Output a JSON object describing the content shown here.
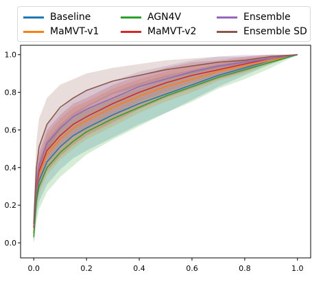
{
  "chart_data": {
    "type": "line",
    "title": "",
    "xlabel": "",
    "ylabel": "",
    "xlim": [
      -0.05,
      1.05
    ],
    "ylim": [
      -0.08,
      1.05
    ],
    "xticks": [
      0.0,
      0.2,
      0.4,
      0.6,
      0.8,
      1.0
    ],
    "xtick_labels": [
      "0.0",
      "0.2",
      "0.4",
      "0.6",
      "0.8",
      "1.0"
    ],
    "yticks": [
      0.0,
      0.2,
      0.4,
      0.6,
      0.8,
      1.0
    ],
    "ytick_labels": [
      "0.0",
      "0.2",
      "0.4",
      "0.6",
      "0.8",
      "1.0"
    ],
    "grid": false,
    "legend_placement": "top-center",
    "x": [
      0.0,
      0.01,
      0.02,
      0.05,
      0.1,
      0.15,
      0.2,
      0.3,
      0.4,
      0.5,
      0.6,
      0.7,
      0.8,
      0.9,
      1.0
    ],
    "series": [
      {
        "name": "Baseline",
        "color": "#1f77b4",
        "values": [
          0.05,
          0.25,
          0.33,
          0.43,
          0.51,
          0.57,
          0.61,
          0.68,
          0.74,
          0.79,
          0.84,
          0.89,
          0.93,
          0.97,
          1.0
        ],
        "band": [
          0.1,
          0.1,
          0.11,
          0.12,
          0.12,
          0.12,
          0.12,
          0.12,
          0.11,
          0.1,
          0.08,
          0.06,
          0.04,
          0.02,
          0.0
        ]
      },
      {
        "name": "MaMVT-v1",
        "color": "#ff7f0e",
        "values": [
          0.06,
          0.27,
          0.36,
          0.47,
          0.55,
          0.61,
          0.65,
          0.72,
          0.78,
          0.83,
          0.87,
          0.91,
          0.94,
          0.97,
          1.0
        ],
        "band": [
          0.08,
          0.09,
          0.1,
          0.11,
          0.11,
          0.11,
          0.1,
          0.1,
          0.09,
          0.08,
          0.07,
          0.05,
          0.04,
          0.02,
          0.0
        ]
      },
      {
        "name": "AGN4V",
        "color": "#2ca02c",
        "values": [
          0.03,
          0.22,
          0.3,
          0.4,
          0.48,
          0.54,
          0.59,
          0.66,
          0.72,
          0.78,
          0.83,
          0.88,
          0.92,
          0.96,
          1.0
        ],
        "band": [
          0.1,
          0.11,
          0.12,
          0.13,
          0.13,
          0.13,
          0.12,
          0.11,
          0.1,
          0.09,
          0.08,
          0.06,
          0.05,
          0.03,
          0.0
        ]
      },
      {
        "name": "MaMVT-v2",
        "color": "#d62728",
        "values": [
          0.08,
          0.29,
          0.38,
          0.49,
          0.57,
          0.63,
          0.67,
          0.74,
          0.8,
          0.85,
          0.89,
          0.92,
          0.95,
          0.98,
          1.0
        ],
        "band": [
          0.08,
          0.09,
          0.1,
          0.11,
          0.11,
          0.11,
          0.1,
          0.1,
          0.09,
          0.08,
          0.07,
          0.05,
          0.04,
          0.02,
          0.0
        ]
      },
      {
        "name": "Ensemble",
        "color": "#9467bd",
        "values": [
          0.09,
          0.31,
          0.41,
          0.53,
          0.61,
          0.67,
          0.71,
          0.77,
          0.83,
          0.87,
          0.91,
          0.94,
          0.96,
          0.98,
          1.0
        ],
        "band": [
          0.08,
          0.09,
          0.1,
          0.1,
          0.1,
          0.1,
          0.1,
          0.09,
          0.08,
          0.07,
          0.06,
          0.05,
          0.04,
          0.02,
          0.0
        ]
      },
      {
        "name": "Ensemble SD",
        "color": "#8c564b",
        "values": [
          0.1,
          0.4,
          0.51,
          0.63,
          0.72,
          0.77,
          0.81,
          0.86,
          0.89,
          0.92,
          0.94,
          0.96,
          0.97,
          0.99,
          1.0
        ],
        "band": [
          0.1,
          0.14,
          0.15,
          0.14,
          0.12,
          0.1,
          0.09,
          0.07,
          0.06,
          0.05,
          0.04,
          0.03,
          0.02,
          0.01,
          0.0
        ]
      }
    ]
  }
}
